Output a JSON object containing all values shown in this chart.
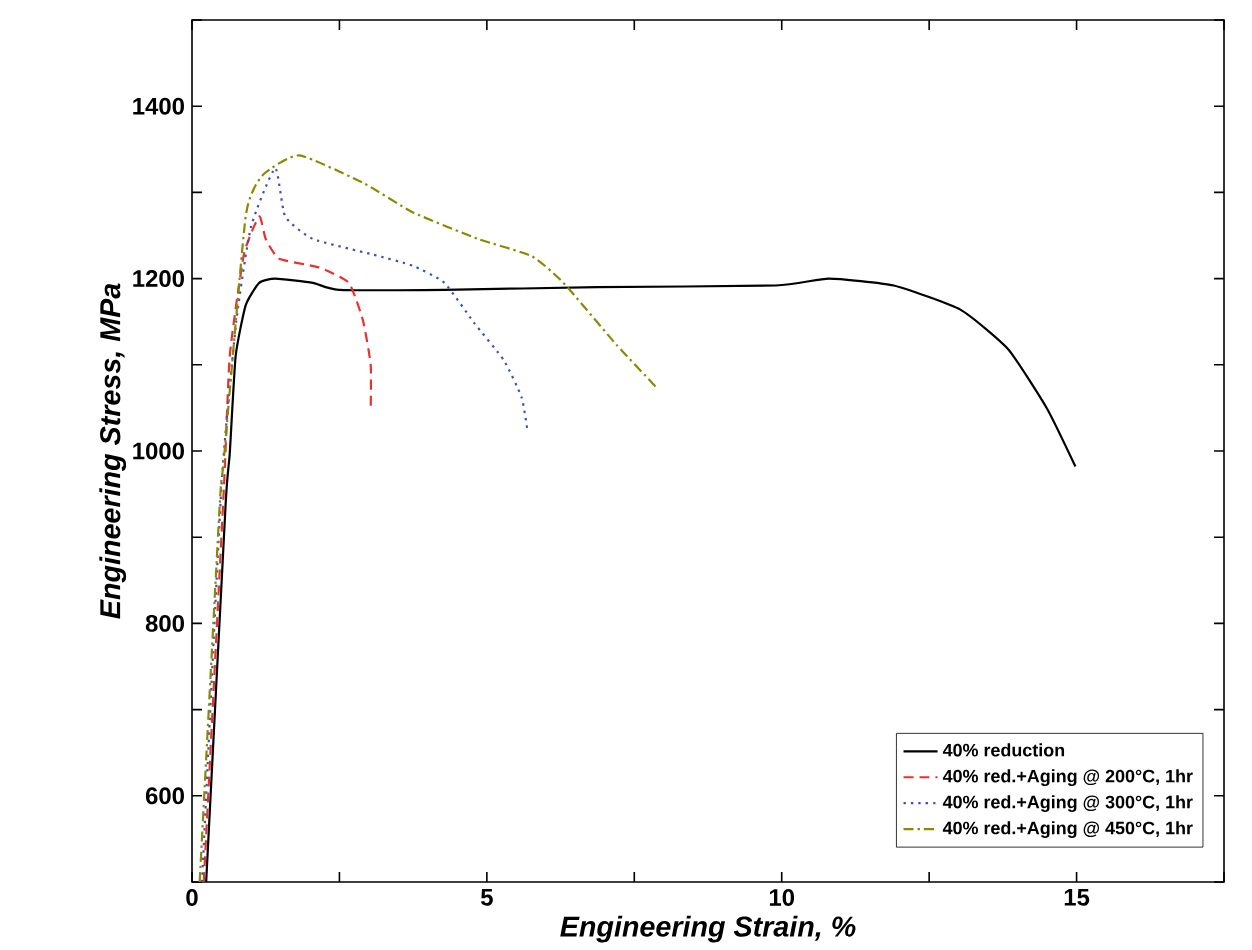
{
  "chart_data": {
    "type": "line",
    "xlabel": "Engineering Strain, %",
    "ylabel": "Engineering Stress, MPa",
    "xlim": [
      0,
      17.5
    ],
    "ylim": [
      500,
      1500
    ],
    "xticks": [
      0,
      {
        "value": 2.5,
        "label": null
      },
      5,
      {
        "value": 7.5,
        "label": null
      },
      10,
      {
        "value": 12.5,
        "label": null
      },
      15,
      {
        "value": 17.5,
        "label": null
      }
    ],
    "yticks": [
      {
        "value": 500,
        "label": null
      },
      600,
      {
        "value": 700,
        "label": null
      },
      800,
      {
        "value": 900,
        "label": null
      },
      1000,
      {
        "value": 1100,
        "label": null
      },
      1200,
      {
        "value": 1300,
        "label": null
      },
      1400,
      {
        "value": 1500,
        "label": null
      }
    ],
    "grid": false,
    "legend": "bottom right",
    "marker": "none",
    "series": [
      {
        "name": "40% reduction",
        "color": "#000000",
        "line_style": "solid",
        "x": [
          0.24,
          0.57,
          0.64,
          0.74,
          0.91,
          1.14,
          1.41,
          2.05,
          2.49,
          4.28,
          6.87,
          9.9,
          10.8,
          11.9,
          13.03,
          13.84,
          14.5,
          14.98
        ],
        "values": [
          500,
          938,
          997,
          1110,
          1169,
          1195,
          1200,
          1195,
          1187,
          1187,
          1190,
          1192,
          1200,
          1192,
          1164,
          1118,
          1049,
          982
        ]
      },
      {
        "name": "40% red.+Aging @ 200°C, 1hr",
        "color": "#e8322c",
        "line_style": "dashed",
        "x": [
          0.2,
          0.54,
          0.64,
          0.88,
          1.14,
          1.25,
          1.48,
          2.15,
          2.66,
          2.9,
          3.03,
          3.03
        ],
        "values": [
          500,
          956,
          1110,
          1228,
          1272,
          1246,
          1223,
          1213,
          1195,
          1151,
          1100,
          1046
        ]
      },
      {
        "name": "40% red.+Aging @ 300°C, 1hr",
        "color": "#3a4fc0",
        "line_style": "dotted",
        "x": [
          0.17,
          0.5,
          0.75,
          1.0,
          1.41,
          1.58,
          2.05,
          3.06,
          3.74,
          4.28,
          4.78,
          5.29,
          5.59,
          5.69
        ],
        "values": [
          500,
          960,
          1150,
          1260,
          1328,
          1272,
          1246,
          1228,
          1215,
          1195,
          1149,
          1105,
          1062,
          1023
        ]
      },
      {
        "name": "40% red.+Aging @ 450°C, 1hr",
        "color": "#8a8a00",
        "line_style": "dashdot",
        "x": [
          0.13,
          0.47,
          0.54,
          0.91,
          1.2,
          1.82,
          2.93,
          3.74,
          4.85,
          5.76,
          6.3,
          7.2,
          7.9
        ],
        "values": [
          500,
          938,
          990,
          1272,
          1320,
          1343,
          1310,
          1277,
          1246,
          1226,
          1195,
          1123,
          1072
        ]
      }
    ]
  }
}
